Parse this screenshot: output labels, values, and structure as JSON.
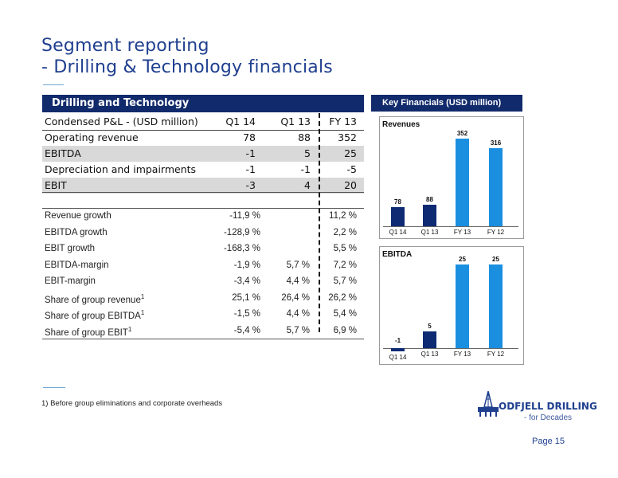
{
  "title": {
    "line1": "Segment reporting",
    "line2": "- Drilling & Technology financials"
  },
  "table": {
    "header": "Drilling and Technology",
    "columns": [
      "Condensed P&L - (USD million)",
      "Q1 14",
      "Q1 13",
      "FY 13"
    ],
    "pl_rows": [
      {
        "label": "Operating revenue",
        "q114": "78",
        "q113": "88",
        "fy13": "352",
        "shaded": false
      },
      {
        "label": "EBITDA",
        "q114": "-1",
        "q113": "5",
        "fy13": "25",
        "shaded": true
      },
      {
        "label": "Depreciation and impairments",
        "q114": "-1",
        "q113": "-1",
        "fy13": "-5",
        "shaded": false
      },
      {
        "label": "EBIT",
        "q114": "-3",
        "q113": "4",
        "fy13": "20",
        "shaded": true
      }
    ],
    "key_rows": [
      {
        "label": "Revenue growth",
        "sup": "",
        "q114": "-11,9 %",
        "q113": "",
        "fy13": "11,2 %"
      },
      {
        "label": "EBITDA growth",
        "sup": "",
        "q114": "-128,9 %",
        "q113": "",
        "fy13": "2,2 %"
      },
      {
        "label": "EBIT growth",
        "sup": "",
        "q114": "-168,3 %",
        "q113": "",
        "fy13": "5,5 %"
      },
      {
        "label": "EBITDA-margin",
        "sup": "",
        "q114": "-1,9 %",
        "q113": "5,7 %",
        "fy13": "7,2 %"
      },
      {
        "label": "EBIT-margin",
        "sup": "",
        "q114": "-3,4 %",
        "q113": "4,4 %",
        "fy13": "5,7 %"
      },
      {
        "label": "Share of group revenue",
        "sup": "1",
        "q114": "25,1 %",
        "q113": "26,4 %",
        "fy13": "26,2 %"
      },
      {
        "label": "Share of group EBITDA",
        "sup": "1",
        "q114": "-1,5 %",
        "q113": "4,4 %",
        "fy13": "5,4 %"
      },
      {
        "label": "Share of group EBIT",
        "sup": "1",
        "q114": "-5,4 %",
        "q113": "5,7 %",
        "fy13": "6,9 %"
      }
    ]
  },
  "key_financials": {
    "header": "Key Financials (USD million)"
  },
  "chart_data": [
    {
      "type": "bar",
      "title": "Revenues",
      "categories": [
        "Q1 14",
        "Q1 13",
        "FY 13",
        "FY 12"
      ],
      "values": [
        78,
        88,
        352,
        316
      ],
      "ylim": [
        0,
        360
      ],
      "colors": [
        "#0e2a73",
        "#0e2a73",
        "#1a8fe0",
        "#1a8fe0"
      ]
    },
    {
      "type": "bar",
      "title": "EBITDA",
      "categories": [
        "Q1 14",
        "Q1 13",
        "FY 13",
        "FY 12"
      ],
      "values": [
        -1,
        5,
        25,
        25
      ],
      "ylim": [
        -1,
        25
      ],
      "colors": [
        "#0e2a73",
        "#0e2a73",
        "#1a8fe0",
        "#1a8fe0"
      ]
    }
  ],
  "footnote": "1) Before group eliminations and corporate overheads",
  "logo": {
    "name": "ODFJELL DRILLING",
    "tagline": "- for Decades"
  },
  "page": "Page 15"
}
